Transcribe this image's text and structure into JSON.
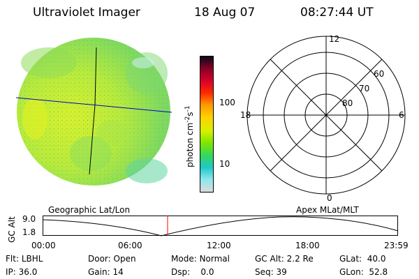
{
  "header": {
    "instrument": "Ultraviolet Imager",
    "date": "18 Aug 07",
    "time": "08:27:44 UT"
  },
  "image_panel": {
    "label": "Geographic Lat/Lon"
  },
  "colorbar": {
    "unit_main": "photon cm",
    "unit_sup1": "-2",
    "unit_mid": "s",
    "unit_sup2": "-1",
    "ticks": [
      "100",
      "10"
    ],
    "colors": [
      "#0b0b1a",
      "#8a0028",
      "#d8002a",
      "#ff2a00",
      "#ff9a00",
      "#ffd200",
      "#d6f000",
      "#7ee600",
      "#34d85a",
      "#20c8c8",
      "#8ee6ee",
      "#dcdcdc"
    ]
  },
  "polar_plot": {
    "label": "Apex MLat/MLT",
    "mlt_labels": {
      "top": "12",
      "right": "6",
      "bottom": "0",
      "left": "18"
    },
    "lat_labels": [
      "60",
      "70",
      "80"
    ]
  },
  "timeline": {
    "ylabel": "GC Alt",
    "y_ticks": [
      "9.0",
      "1.8"
    ],
    "x_ticks": [
      "00:00",
      "06:00",
      "12:00",
      "18:00",
      "23:59"
    ],
    "marker_color": "#ff0000"
  },
  "info": {
    "flt_label": "Flt:",
    "flt_value": "LBHL",
    "ip_label": "IP:",
    "ip_value": "36.0",
    "door_label": "Door:",
    "door_value": "Open",
    "gain_label": "Gain:",
    "gain_value": "14",
    "mode_label": "Mode:",
    "mode_value": "Normal",
    "dsp_label": "Dsp:",
    "dsp_value": "0.0",
    "gcalt_label": "GC Alt:",
    "gcalt_value": "2.2 Re",
    "seq_label": "Seq:",
    "seq_value": "39",
    "glat_label": "GLat:",
    "glat_value": "40.0",
    "glon_label": "GLon:",
    "glon_value": "52.8"
  }
}
